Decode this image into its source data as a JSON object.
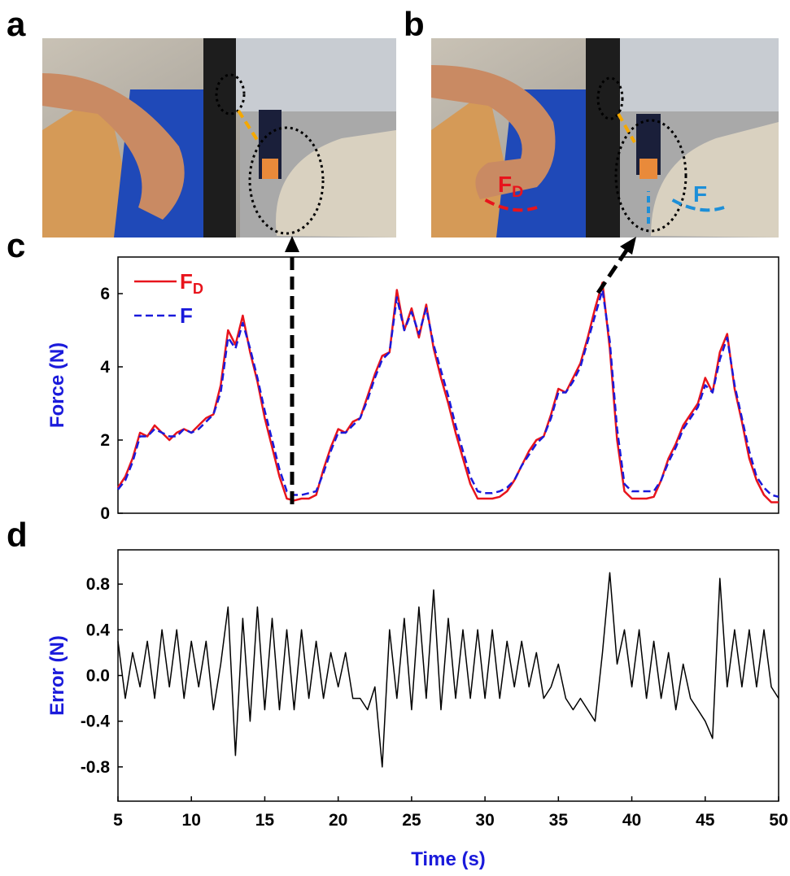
{
  "panel_labels": [
    "a",
    "b",
    "c",
    "d"
  ],
  "photo_labels": [
    "FD",
    "F"
  ],
  "chart_data": [
    {
      "type": "line",
      "ylabel": "Force (N)",
      "xlim": [
        5,
        50
      ],
      "ylim": [
        0,
        7
      ],
      "yticks": [
        0,
        2,
        4,
        6
      ],
      "x": [
        5,
        5.5,
        6,
        6.5,
        7,
        7.5,
        8,
        8.5,
        9,
        9.5,
        10,
        10.5,
        11,
        11.5,
        12,
        12.5,
        13,
        13.5,
        14,
        14.5,
        15,
        15.5,
        16,
        16.5,
        17,
        17.5,
        18,
        18.5,
        19,
        19.5,
        20,
        20.5,
        21,
        21.5,
        22,
        22.5,
        23,
        23.5,
        24,
        24.5,
        25,
        25.5,
        26,
        26.5,
        27,
        27.5,
        28,
        28.5,
        29,
        29.5,
        30,
        30.5,
        31,
        31.5,
        32,
        32.5,
        33,
        33.5,
        34,
        34.5,
        35,
        35.5,
        36,
        36.5,
        37,
        37.5,
        38,
        38.5,
        39,
        39.5,
        40,
        40.5,
        41,
        41.5,
        42,
        42.5,
        43,
        43.5,
        44,
        44.5,
        45,
        45.5,
        46,
        46.5,
        47,
        47.5,
        48,
        48.5,
        49,
        49.5,
        50
      ],
      "series": [
        {
          "name": "FD",
          "color": "#e8141c",
          "dash": false,
          "values": [
            0.7,
            1.0,
            1.5,
            2.2,
            2.1,
            2.4,
            2.2,
            2.0,
            2.2,
            2.3,
            2.2,
            2.4,
            2.6,
            2.7,
            3.5,
            5.0,
            4.6,
            5.4,
            4.4,
            3.6,
            2.6,
            1.8,
            1.0,
            0.4,
            0.35,
            0.4,
            0.4,
            0.5,
            1.2,
            1.8,
            2.3,
            2.2,
            2.5,
            2.6,
            3.2,
            3.8,
            4.3,
            4.4,
            6.1,
            5.0,
            5.6,
            4.8,
            5.7,
            4.5,
            3.7,
            3.0,
            2.2,
            1.5,
            0.8,
            0.4,
            0.4,
            0.4,
            0.45,
            0.6,
            0.9,
            1.3,
            1.7,
            2.0,
            2.1,
            2.7,
            3.4,
            3.3,
            3.7,
            4.1,
            4.8,
            5.6,
            6.3,
            4.5,
            2.0,
            0.6,
            0.4,
            0.4,
            0.4,
            0.45,
            0.9,
            1.5,
            1.9,
            2.4,
            2.7,
            3.0,
            3.7,
            3.3,
            4.4,
            4.9,
            3.4,
            2.5,
            1.5,
            0.9,
            0.5,
            0.3,
            0.3
          ]
        },
        {
          "name": "F",
          "color": "#1a1adb",
          "dash": true,
          "values": [
            0.65,
            0.9,
            1.4,
            2.1,
            2.1,
            2.3,
            2.2,
            2.1,
            2.1,
            2.3,
            2.2,
            2.3,
            2.5,
            2.7,
            3.3,
            4.8,
            4.5,
            5.2,
            4.5,
            3.7,
            2.8,
            2.0,
            1.2,
            0.6,
            0.5,
            0.5,
            0.55,
            0.6,
            1.1,
            1.7,
            2.2,
            2.2,
            2.4,
            2.6,
            3.1,
            3.7,
            4.2,
            4.4,
            5.9,
            5.0,
            5.5,
            4.9,
            5.6,
            4.6,
            3.9,
            3.2,
            2.4,
            1.7,
            1.0,
            0.6,
            0.55,
            0.55,
            0.6,
            0.7,
            0.9,
            1.3,
            1.6,
            1.9,
            2.1,
            2.6,
            3.3,
            3.3,
            3.6,
            4.0,
            4.7,
            5.4,
            6.1,
            4.7,
            2.3,
            0.8,
            0.6,
            0.6,
            0.6,
            0.6,
            0.9,
            1.4,
            1.8,
            2.3,
            2.6,
            2.9,
            3.5,
            3.3,
            4.2,
            4.8,
            3.5,
            2.6,
            1.7,
            1.0,
            0.7,
            0.5,
            0.45
          ]
        }
      ]
    },
    {
      "type": "line",
      "xlabel": "Time (s)",
      "ylabel": "Error (N)",
      "xlim": [
        5,
        50
      ],
      "ylim": [
        -1.1,
        1.1
      ],
      "xticks": [
        5,
        10,
        15,
        20,
        25,
        30,
        35,
        40,
        45,
        50
      ],
      "yticks": [
        -0.8,
        -0.4,
        {
          "value": 0,
          "label": "0.0"
        },
        0.4,
        0.8
      ],
      "x": [
        5,
        5.5,
        6,
        6.5,
        7,
        7.5,
        8,
        8.5,
        9,
        9.5,
        10,
        10.5,
        11,
        11.5,
        12,
        12.5,
        13,
        13.5,
        14,
        14.5,
        15,
        15.5,
        16,
        16.5,
        17,
        17.5,
        18,
        18.5,
        19,
        19.5,
        20,
        20.5,
        21,
        21.5,
        22,
        22.5,
        23,
        23.5,
        24,
        24.5,
        25,
        25.5,
        26,
        26.5,
        27,
        27.5,
        28,
        28.5,
        29,
        29.5,
        30,
        30.5,
        31,
        31.5,
        32,
        32.5,
        33,
        33.5,
        34,
        34.5,
        35,
        35.5,
        36,
        36.5,
        37,
        37.5,
        38,
        38.5,
        39,
        39.5,
        40,
        40.5,
        41,
        41.5,
        42,
        42.5,
        43,
        43.5,
        44,
        44.5,
        45,
        45.5,
        46,
        46.5,
        47,
        47.5,
        48,
        48.5,
        49,
        49.5,
        50
      ],
      "series": [
        {
          "color": "#000000",
          "dash": false,
          "values": [
            0.3,
            -0.2,
            0.2,
            -0.1,
            0.3,
            -0.2,
            0.4,
            -0.1,
            0.4,
            -0.2,
            0.3,
            -0.1,
            0.3,
            -0.3,
            0.1,
            0.6,
            -0.7,
            0.5,
            -0.4,
            0.6,
            -0.3,
            0.5,
            -0.3,
            0.4,
            -0.3,
            0.4,
            -0.2,
            0.3,
            -0.2,
            0.2,
            -0.1,
            0.2,
            -0.2,
            -0.2,
            -0.3,
            -0.1,
            -0.8,
            0.4,
            -0.2,
            0.5,
            -0.3,
            0.6,
            -0.2,
            0.75,
            -0.3,
            0.5,
            -0.2,
            0.4,
            -0.2,
            0.4,
            -0.2,
            0.4,
            -0.2,
            0.3,
            -0.1,
            0.3,
            -0.1,
            0.2,
            -0.2,
            -0.1,
            0.1,
            -0.2,
            -0.3,
            -0.2,
            -0.3,
            -0.4,
            0.2,
            0.9,
            0.1,
            0.4,
            -0.1,
            0.4,
            -0.2,
            0.3,
            -0.2,
            0.2,
            -0.3,
            0.1,
            -0.2,
            -0.3,
            -0.4,
            -0.55,
            0.85,
            -0.1,
            0.4,
            -0.1,
            0.4,
            -0.1,
            0.4,
            -0.1,
            -0.2
          ]
        }
      ]
    }
  ]
}
